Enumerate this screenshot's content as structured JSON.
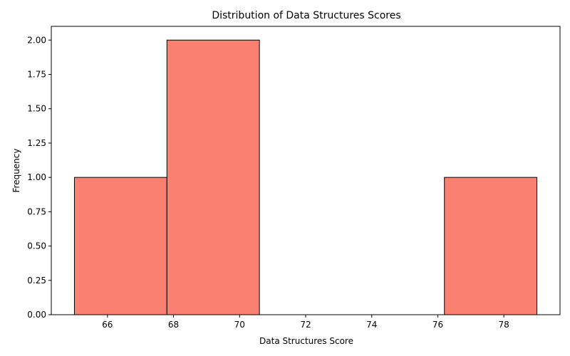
{
  "chart_data": {
    "type": "bar",
    "title": "Distribution of Data Structures Scores",
    "xlabel": "Data Structures Score",
    "ylabel": "Frequency",
    "bins": [
      {
        "start": 65.0,
        "end": 67.8,
        "count": 1
      },
      {
        "start": 67.8,
        "end": 70.6,
        "count": 2
      },
      {
        "start": 70.6,
        "end": 73.4,
        "count": 0
      },
      {
        "start": 73.4,
        "end": 76.2,
        "count": 0
      },
      {
        "start": 76.2,
        "end": 79.0,
        "count": 1
      }
    ],
    "xlim": [
      64.3,
      79.7
    ],
    "ylim": [
      0,
      2.1
    ],
    "xticks": [
      66,
      68,
      70,
      72,
      74,
      76,
      78
    ],
    "xtick_labels": [
      "66",
      "68",
      "70",
      "72",
      "74",
      "76",
      "78"
    ],
    "yticks": [
      0,
      0.25,
      0.5,
      0.75,
      1.0,
      1.25,
      1.5,
      1.75,
      2.0
    ],
    "ytick_labels": [
      "0.00",
      "0.25",
      "0.50",
      "0.75",
      "1.00",
      "1.25",
      "1.50",
      "1.75",
      "2.00"
    ],
    "bar_color": "#fa8072",
    "edge_color": "#000000",
    "grid": false,
    "legend": "none"
  }
}
